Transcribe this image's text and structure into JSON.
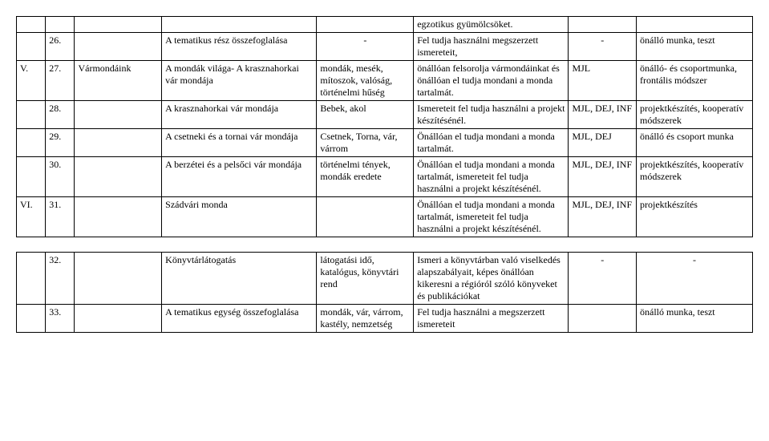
{
  "rows": [
    {
      "c1": "",
      "c2": "",
      "c3": "",
      "c4": "",
      "c5": "",
      "c6": "egzotikus gyümölcsöket.",
      "c7": "",
      "c8": ""
    },
    {
      "c1": "",
      "c2": "26.",
      "c3": "",
      "c4": "A tematikus rész összefoglalása",
      "c5": "-",
      "c6": "Fel tudja használni megszerzett ismereteit,",
      "c7": "-",
      "c8": "önálló munka, teszt"
    },
    {
      "c1": "V.",
      "c2": "27.",
      "c3": "Vármondáink",
      "c4": "A mondák világa- A krasznahorkai vár mondája",
      "c5": "mondák, mesék, mítoszok, valóság, történelmi hűség",
      "c6": "önállóan felsorolja vármondáinkat és önállóan el tudja mondani a monda tartalmát.",
      "c7": "MJL",
      "c8": "önálló- és csoportmunka, frontális módszer"
    },
    {
      "c1": "",
      "c2": "28.",
      "c3": "",
      "c4": "A krasznahorkai vár mondája",
      "c5": "Bebek, akol",
      "c6": "Ismereteit fel tudja használni a projekt készítésénél.",
      "c7": "MJL, DEJ, INF",
      "c8": "projektkészítés, kooperatív módszerek"
    },
    {
      "c1": "",
      "c2": "29.",
      "c3": "",
      "c4": "A csetneki és a tornai vár mondája",
      "c5": "Csetnek, Torna, vár, várrom",
      "c6": "Önállóan el tudja mondani a monda tartalmát.",
      "c7": "MJL, DEJ",
      "c8": "önálló és csoport munka"
    },
    {
      "c1": "",
      "c2": "30.",
      "c3": "",
      "c4": "A berzétei és a pelsőci vár mondája",
      "c5": "történelmi tények, mondák eredete",
      "c6": "Önállóan el tudja mondani a monda tartalmát, ismereteit fel tudja használni a projekt készítésénél.",
      "c7": "MJL, DEJ, INF",
      "c8": "projektkészítés, kooperatív módszerek"
    },
    {
      "c1": "VI.",
      "c2": "31.",
      "c3": "",
      "c4": "Szádvári monda",
      "c5": "",
      "c6": "Önállóan el tudja mondani a monda tartalmát, ismereteit fel tudja használni a projekt készítésénél.",
      "c7": "MJL, DEJ, INF",
      "c8": "projektkészítés"
    }
  ],
  "rows2": [
    {
      "c1": "",
      "c2": "32.",
      "c3": "",
      "c4": "Könyvtárlátogatás",
      "c5": "látogatási idő, katalógus, könyvtári rend",
      "c6": "Ismeri a könyvtárban való viselkedés alapszabályait, képes önállóan kikeresni a régióról szóló könyveket és publikációkat",
      "c7": "-",
      "c8": "-"
    },
    {
      "c1": "",
      "c2": "33.",
      "c3": "",
      "c4": "A tematikus egység összefoglalása",
      "c5": "mondák, vár, várrom, kastély, nemzetség",
      "c6": "Fel tudja használni a megszerzett ismereteit",
      "c7": "",
      "c8": "önálló munka, teszt"
    }
  ]
}
